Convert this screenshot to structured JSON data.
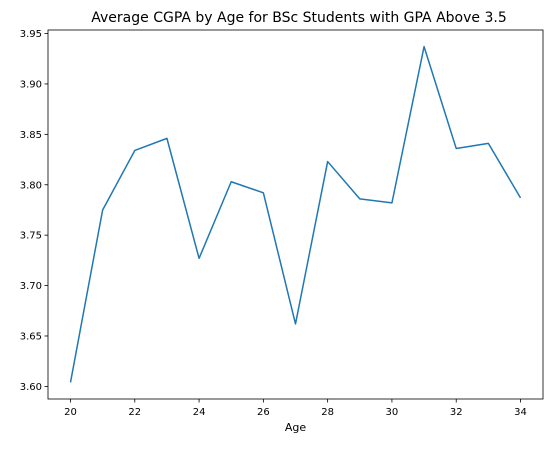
{
  "chart_data": {
    "type": "line",
    "title": "Average CGPA by Age for BSc Students with GPA Above 3.5",
    "xlabel": "Age",
    "ylabel": "",
    "xlim": [
      19.3,
      34.7
    ],
    "ylim": [
      3.5875,
      3.9535
    ],
    "grid": false,
    "x_ticks": [
      20,
      22,
      24,
      26,
      28,
      30,
      32,
      34
    ],
    "y_ticks": [
      3.6,
      3.65,
      3.7,
      3.75,
      3.8,
      3.85,
      3.9,
      3.95
    ],
    "series": [
      {
        "color": "#1f77b4",
        "x": [
          20,
          21,
          22,
          23,
          24,
          25,
          26,
          27,
          28,
          29,
          30,
          31,
          32,
          33,
          34
        ],
        "y": [
          3.604,
          3.775,
          3.834,
          3.846,
          3.727,
          3.803,
          3.792,
          3.662,
          3.823,
          3.786,
          3.782,
          3.937,
          3.836,
          3.841,
          3.787
        ]
      }
    ]
  }
}
